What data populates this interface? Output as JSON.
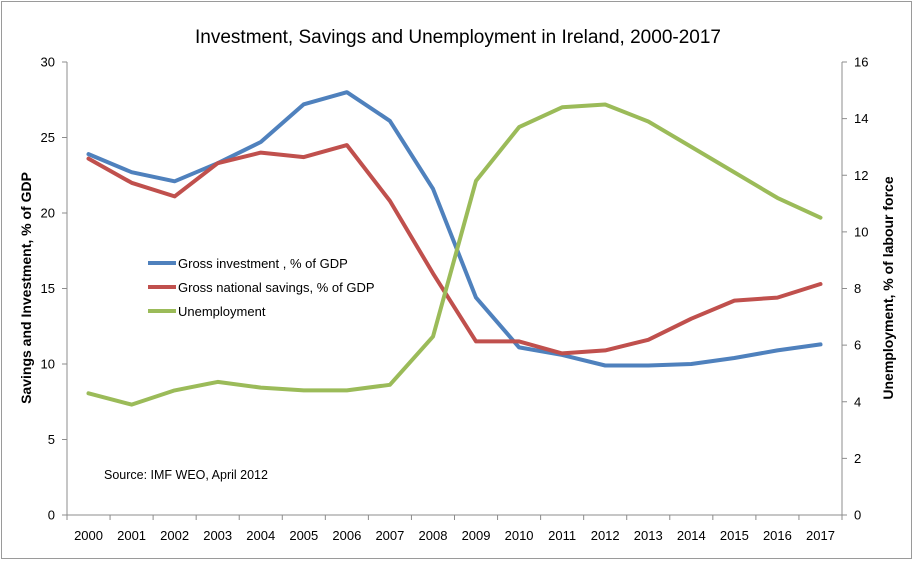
{
  "chart_data": {
    "type": "line",
    "title": "Investment, Savings and Unemployment in Ireland, 2000-2017",
    "ylabel_left": "Savings and Investment, % of GDP",
    "ylabel_right": "Unemployment, % of labour force",
    "xlabel": "",
    "categories": [
      "2000",
      "2001",
      "2002",
      "2003",
      "2004",
      "2005",
      "2006",
      "2007",
      "2008",
      "2009",
      "2010",
      "2011",
      "2012",
      "2013",
      "2014",
      "2015",
      "2016",
      "2017"
    ],
    "ylim_left": [
      0,
      30
    ],
    "yticks_left": [
      0,
      5,
      10,
      15,
      20,
      25,
      30
    ],
    "ylim_right": [
      0,
      16
    ],
    "yticks_right": [
      0,
      2,
      4,
      6,
      8,
      10,
      12,
      14,
      16
    ],
    "grid": false,
    "legend_position": "middle-left",
    "series": [
      {
        "name": "Gross investment , % of GDP",
        "axis": "left",
        "color": "#4f81bd",
        "values": [
          23.9,
          22.7,
          22.1,
          23.3,
          24.7,
          27.2,
          28.0,
          26.1,
          21.6,
          14.4,
          11.1,
          10.6,
          9.9,
          9.9,
          10.0,
          10.4,
          10.9,
          11.3
        ]
      },
      {
        "name": "Gross national savings, % of GDP",
        "axis": "left",
        "color": "#c0504d",
        "values": [
          23.6,
          22.0,
          21.1,
          23.3,
          24.0,
          23.7,
          24.5,
          20.8,
          16.0,
          11.5,
          11.5,
          10.7,
          10.9,
          11.6,
          13.0,
          14.2,
          14.4,
          15.3
        ]
      },
      {
        "name": "Unemployment",
        "axis": "right",
        "color": "#9bbb59",
        "values": [
          4.3,
          3.9,
          4.4,
          4.7,
          4.5,
          4.4,
          4.4,
          4.6,
          6.3,
          11.8,
          13.7,
          14.4,
          14.5,
          13.9,
          13.0,
          12.1,
          11.2,
          10.5
        ]
      }
    ],
    "annotation": "Source: IMF WEO, April 2012"
  }
}
